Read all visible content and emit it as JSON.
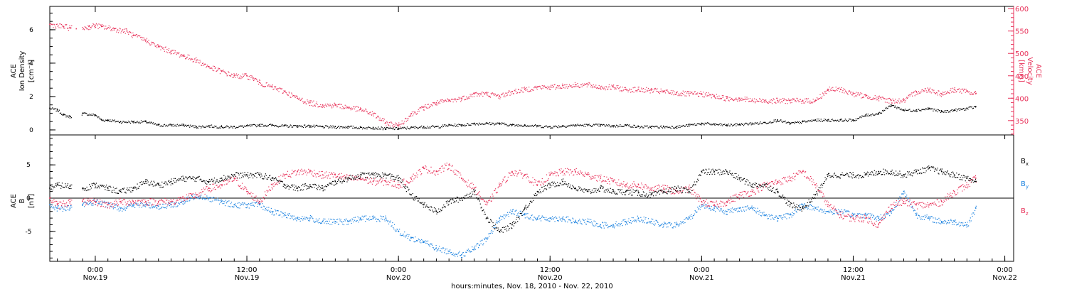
{
  "colors": {
    "black": "#000000",
    "pink": "#e8325a",
    "blue": "#1f84e0",
    "frame": "#000000"
  },
  "x_axis": {
    "title": "hours:minutes, Nov. 18, 2010 - Nov. 22, 2010",
    "range_hours_from_nov19_0000": [
      -3.6,
      72.7
    ],
    "ticks": [
      {
        "hours": 0,
        "time": "0:00",
        "date": "Nov.19"
      },
      {
        "hours": 12,
        "time": "12:00",
        "date": "Nov.19"
      },
      {
        "hours": 24,
        "time": "0:00",
        "date": "Nov.20"
      },
      {
        "hours": 36,
        "time": "12:00",
        "date": "Nov.20"
      },
      {
        "hours": 48,
        "time": "0:00",
        "date": "Nov.21"
      },
      {
        "hours": 60,
        "time": "12:00",
        "date": "Nov.21"
      },
      {
        "hours": 72,
        "time": "0:00",
        "date": "Nov.22"
      }
    ]
  },
  "chart_data": [
    {
      "type": "scatter",
      "panel": "top",
      "ylabel_left": [
        "ACE",
        "Ion Density",
        "[cm⁻³]"
      ],
      "ylabel_right": [
        "ACE",
        "Velocity",
        "[km/s]"
      ],
      "ylim_left": [
        -0.3,
        7.4
      ],
      "ylim_right": [
        318,
        605
      ],
      "yticks_left": [
        0,
        2,
        4,
        6
      ],
      "yticks_right": [
        350,
        400,
        450,
        500,
        550,
        600
      ],
      "series": [
        {
          "name": "",
          "axis": "left",
          "color": "#000000",
          "x": [
            -3.6,
            -3.0,
            -2.5,
            -2.0,
            -1.0,
            0.0,
            0.5,
            1.0,
            2.0,
            3.0,
            4.0,
            5.0,
            6.0,
            7.0,
            8.0,
            9.0,
            10.0,
            11.0,
            12.0,
            13.0,
            14.0,
            15.0,
            16.0,
            17.0,
            18.0,
            19.0,
            20.0,
            21.0,
            22.0,
            23.0,
            24.0,
            25.0,
            26.0,
            27.0,
            28.0,
            29.0,
            30.0,
            31.0,
            32.0,
            33.0,
            34.0,
            35.0,
            36.0,
            37.0,
            38.0,
            39.0,
            40.0,
            41.0,
            42.0,
            43.0,
            44.0,
            45.0,
            46.0,
            47.0,
            48.0,
            49.0,
            50.0,
            51.0,
            52.0,
            53.0,
            54.0,
            55.0,
            56.0,
            57.0,
            58.0,
            59.0,
            60.0,
            61.0,
            62.0,
            63.0,
            64.0,
            65.0,
            66.0,
            67.0,
            68.0,
            69.0,
            69.7
          ],
          "values": [
            1.3,
            1.2,
            0.9,
            0.8,
            1.0,
            0.9,
            0.6,
            0.6,
            0.5,
            0.5,
            0.5,
            0.3,
            0.3,
            0.3,
            0.2,
            0.25,
            0.2,
            0.2,
            0.25,
            0.3,
            0.3,
            0.25,
            0.25,
            0.25,
            0.2,
            0.2,
            0.2,
            0.15,
            0.15,
            0.1,
            0.1,
            0.15,
            0.2,
            0.2,
            0.3,
            0.3,
            0.4,
            0.4,
            0.4,
            0.3,
            0.3,
            0.25,
            0.2,
            0.25,
            0.3,
            0.3,
            0.3,
            0.25,
            0.3,
            0.2,
            0.2,
            0.2,
            0.2,
            0.3,
            0.4,
            0.35,
            0.3,
            0.35,
            0.4,
            0.45,
            0.6,
            0.4,
            0.5,
            0.6,
            0.6,
            0.6,
            0.6,
            0.9,
            1.0,
            1.5,
            1.2,
            1.2,
            1.3,
            1.1,
            1.2,
            1.3,
            1.4
          ]
        },
        {
          "name": "",
          "axis": "right",
          "color": "#e8325a",
          "x": [
            -3.6,
            -2.5,
            -2.0,
            -1.5,
            -0.5,
            0.0,
            0.5,
            1.5,
            2.5,
            3.0,
            4.0,
            5.0,
            6.0,
            7.0,
            8.0,
            9.0,
            10.0,
            11.0,
            12.0,
            12.5,
            13.0,
            14.0,
            15.0,
            16.0,
            17.0,
            18.0,
            19.0,
            20.0,
            21.0,
            22.0,
            23.0,
            24.0,
            25.0,
            26.0,
            27.0,
            28.0,
            29.0,
            30.0,
            31.0,
            32.0,
            33.0,
            34.0,
            35.0,
            36.0,
            37.0,
            38.0,
            39.0,
            40.0,
            41.0,
            42.0,
            43.0,
            44.0,
            45.0,
            46.0,
            47.0,
            48.0,
            49.0,
            50.0,
            51.0,
            51.5,
            52.0,
            53.0,
            54.0,
            55.0,
            56.0,
            57.0,
            58.0,
            59.0,
            60.0,
            61.0,
            62.0,
            63.0,
            64.0,
            65.0,
            66.0,
            67.0,
            68.0,
            69.0,
            69.7
          ],
          "values": [
            565,
            560,
            558,
            555,
            560,
            563,
            560,
            555,
            550,
            540,
            530,
            515,
            505,
            495,
            485,
            470,
            460,
            450,
            450,
            445,
            435,
            425,
            415,
            400,
            390,
            385,
            385,
            380,
            375,
            365,
            345,
            340,
            365,
            380,
            390,
            395,
            400,
            410,
            410,
            405,
            415,
            420,
            425,
            425,
            428,
            430,
            430,
            425,
            425,
            420,
            420,
            418,
            415,
            412,
            410,
            410,
            405,
            400,
            400,
            398,
            395,
            395,
            395,
            395,
            395,
            395,
            420,
            420,
            410,
            405,
            400,
            395,
            395,
            415,
            420,
            410,
            420,
            415,
            410
          ]
        }
      ]
    },
    {
      "type": "scatter",
      "panel": "bottom",
      "ylabel_left": [
        "ACE",
        "B",
        "[nT]"
      ],
      "ylim": [
        -9.5,
        9.5
      ],
      "yticks": [
        -5,
        0,
        5
      ],
      "zero_line": true,
      "legend_placement": "right",
      "series": [
        {
          "name": "Bx",
          "color": "#000000",
          "x": [
            -3.6,
            -3.0,
            -2.0,
            -1.0,
            0.0,
            1.0,
            2.0,
            3.0,
            4.0,
            5.0,
            6.0,
            7.0,
            8.0,
            9.0,
            10.0,
            11.0,
            12.0,
            13.0,
            14.0,
            15.0,
            16.0,
            17.0,
            18.0,
            19.0,
            20.0,
            21.0,
            22.0,
            23.0,
            24.0,
            25.0,
            26.0,
            27.0,
            28.0,
            29.0,
            30.0,
            31.0,
            32.0,
            33.0,
            34.0,
            35.0,
            36.0,
            37.0,
            38.0,
            39.0,
            40.0,
            41.0,
            42.0,
            43.0,
            44.0,
            45.0,
            46.0,
            47.0,
            48.0,
            49.0,
            50.0,
            51.0,
            52.0,
            53.0,
            54.0,
            55.0,
            56.0,
            57.0,
            58.0,
            59.0,
            60.0,
            61.0,
            62.0,
            63.0,
            64.0,
            65.0,
            66.0,
            67.0,
            68.0,
            69.0,
            69.7
          ],
          "values": [
            1.5,
            2.0,
            1.8,
            1.5,
            2.0,
            1.5,
            1.0,
            1.5,
            2.5,
            2.0,
            2.5,
            3.0,
            3.0,
            2.5,
            3.0,
            3.5,
            3.5,
            3.5,
            3.0,
            2.0,
            1.5,
            2.0,
            1.5,
            2.5,
            3.0,
            3.5,
            3.5,
            3.5,
            3.0,
            0.5,
            -1.0,
            -2.0,
            -0.5,
            0.0,
            1.0,
            -3.0,
            -5.0,
            -4.0,
            -1.5,
            1.0,
            2.0,
            2.5,
            1.5,
            1.0,
            1.5,
            1.0,
            1.0,
            0.8,
            0.5,
            1.0,
            1.5,
            1.0,
            4.0,
            4.0,
            4.0,
            3.0,
            2.0,
            2.0,
            1.0,
            -1.0,
            -1.5,
            0.5,
            3.5,
            3.5,
            3.5,
            3.5,
            4.0,
            4.0,
            3.5,
            4.0,
            4.5,
            4.0,
            3.5,
            3.0,
            2.5
          ]
        },
        {
          "name": "By",
          "color": "#1f84e0",
          "x": [
            -3.6,
            -3.0,
            -2.0,
            -1.0,
            0.0,
            1.0,
            2.0,
            3.0,
            4.0,
            5.0,
            6.0,
            7.0,
            8.0,
            9.0,
            10.0,
            11.0,
            12.0,
            13.0,
            14.0,
            15.0,
            16.0,
            17.0,
            18.0,
            19.0,
            20.0,
            21.0,
            22.0,
            23.0,
            24.0,
            25.0,
            26.0,
            27.0,
            28.0,
            29.0,
            30.0,
            31.0,
            32.0,
            33.0,
            34.0,
            35.0,
            36.0,
            37.0,
            38.0,
            39.0,
            40.0,
            41.0,
            42.0,
            43.0,
            44.0,
            45.0,
            46.0,
            47.0,
            48.0,
            49.0,
            50.0,
            51.0,
            52.0,
            53.0,
            54.0,
            55.0,
            56.0,
            57.0,
            58.0,
            59.0,
            60.0,
            61.0,
            62.0,
            63.0,
            64.0,
            65.0,
            66.0,
            67.0,
            68.0,
            69.0,
            69.7
          ],
          "values": [
            -1.0,
            -1.5,
            -1.5,
            -1.0,
            -0.5,
            -1.0,
            -1.5,
            -1.0,
            -1.0,
            -1.2,
            -1.0,
            -0.5,
            0.5,
            0.0,
            -0.5,
            -1.0,
            -1.0,
            -1.0,
            -2.0,
            -2.5,
            -3.0,
            -3.0,
            -3.5,
            -3.5,
            -3.5,
            -3.0,
            -3.0,
            -3.0,
            -5.0,
            -6.0,
            -6.5,
            -7.5,
            -8.0,
            -8.5,
            -7.5,
            -6.0,
            -3.0,
            -2.0,
            -2.5,
            -3.0,
            -3.0,
            -3.0,
            -3.5,
            -3.5,
            -4.0,
            -4.0,
            -3.5,
            -3.0,
            -3.5,
            -4.0,
            -4.0,
            -3.0,
            -1.0,
            -1.5,
            -2.0,
            -1.5,
            -1.5,
            -2.5,
            -3.0,
            -2.5,
            -1.0,
            -1.5,
            -2.0,
            -2.0,
            -2.5,
            -2.5,
            -3.0,
            -2.0,
            1.0,
            -2.5,
            -3.0,
            -3.5,
            -3.5,
            -4.0,
            -1.5
          ]
        },
        {
          "name": "Bz",
          "color": "#e8325a",
          "x": [
            -3.6,
            -3.0,
            -2.0,
            -1.0,
            0.0,
            1.0,
            2.0,
            3.0,
            4.0,
            5.0,
            6.0,
            7.0,
            8.0,
            9.0,
            10.0,
            11.0,
            12.0,
            13.0,
            14.0,
            15.0,
            16.0,
            17.0,
            18.0,
            19.0,
            20.0,
            21.0,
            22.0,
            23.0,
            24.0,
            25.0,
            26.0,
            27.0,
            28.0,
            29.0,
            30.0,
            31.0,
            32.0,
            33.0,
            34.0,
            35.0,
            36.0,
            37.0,
            38.0,
            39.0,
            40.0,
            41.0,
            42.0,
            43.0,
            44.0,
            45.0,
            46.0,
            47.0,
            48.0,
            49.0,
            50.0,
            51.0,
            52.0,
            53.0,
            54.0,
            55.0,
            56.0,
            57.0,
            58.0,
            59.0,
            60.0,
            61.0,
            62.0,
            63.0,
            64.0,
            65.0,
            66.0,
            67.0,
            68.0,
            69.0,
            69.7
          ],
          "values": [
            0.0,
            -1.0,
            -0.5,
            -0.5,
            -0.5,
            -1.0,
            -0.5,
            -0.5,
            -0.5,
            -0.5,
            -0.5,
            0.0,
            0.5,
            1.5,
            2.0,
            3.0,
            1.0,
            -0.5,
            2.0,
            3.5,
            4.0,
            4.0,
            3.5,
            3.5,
            3.0,
            3.0,
            2.5,
            2.5,
            2.0,
            3.0,
            4.5,
            4.0,
            5.0,
            3.0,
            1.5,
            -1.0,
            2.0,
            4.0,
            3.5,
            2.0,
            3.5,
            4.0,
            4.0,
            3.5,
            3.0,
            2.5,
            2.0,
            2.0,
            1.5,
            1.5,
            1.0,
            1.5,
            -0.5,
            -1.0,
            -0.5,
            0.5,
            1.0,
            2.0,
            2.5,
            3.0,
            4.0,
            2.0,
            -1.0,
            -2.5,
            -3.0,
            -3.0,
            -4.0,
            -1.0,
            -0.5,
            -1.0,
            -1.0,
            -0.5,
            1.0,
            2.0,
            3.0
          ]
        }
      ]
    }
  ]
}
